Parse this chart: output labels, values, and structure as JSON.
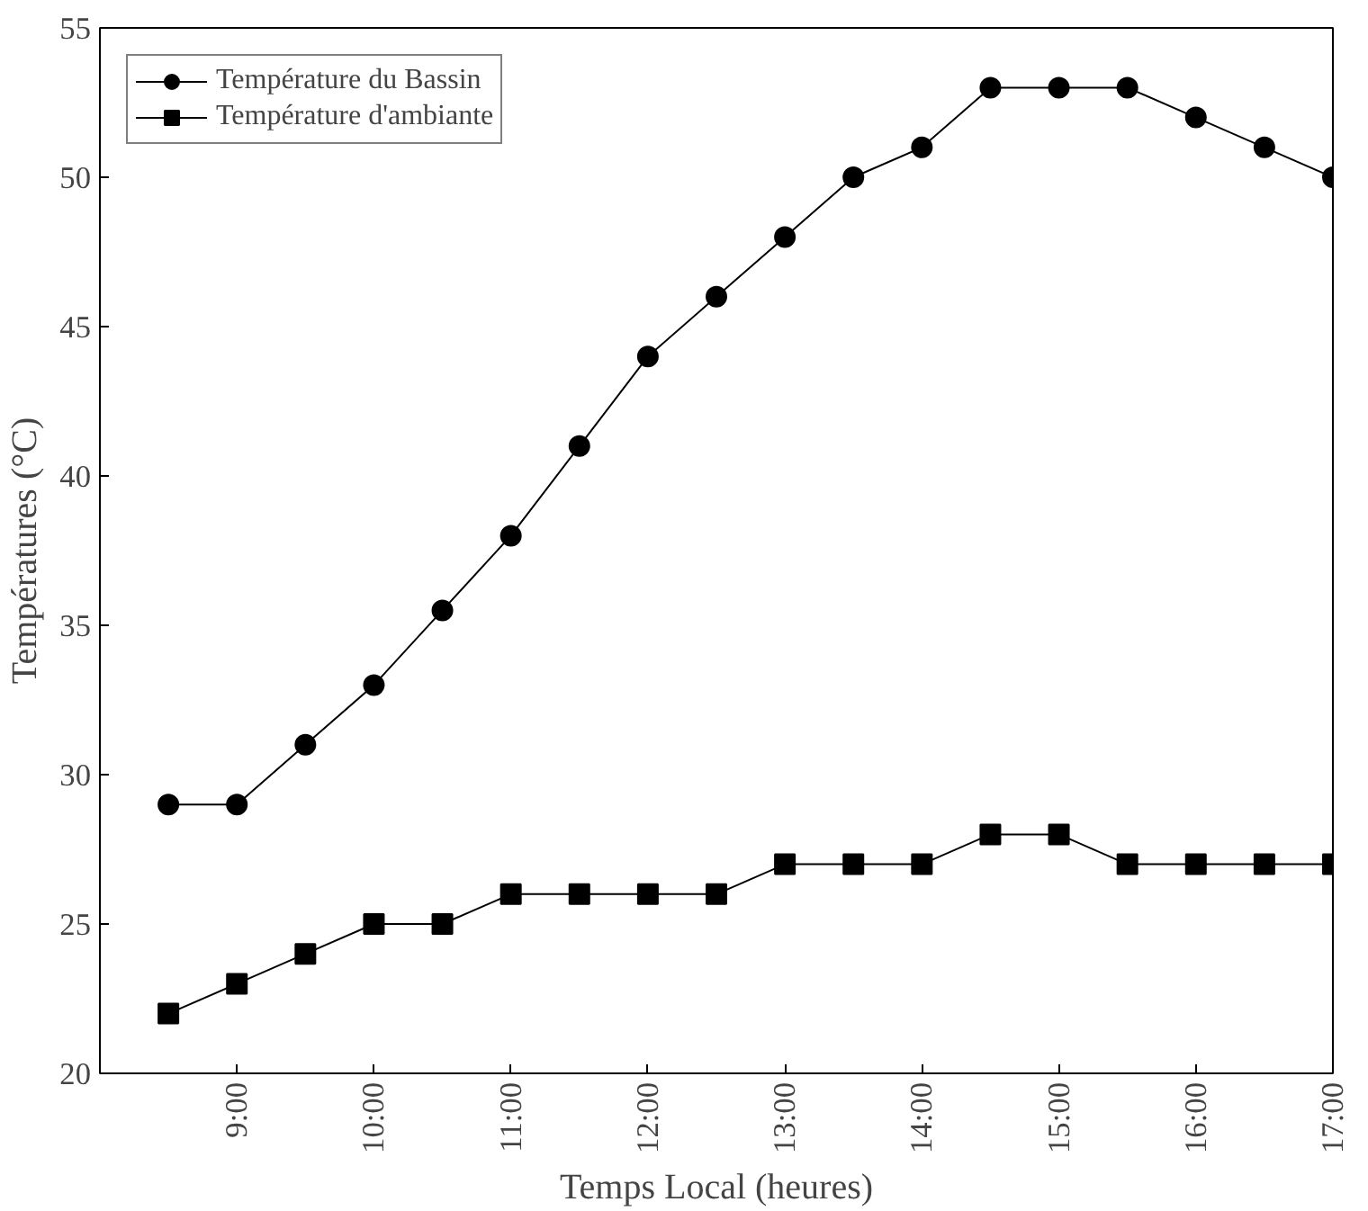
{
  "chart_data": {
    "type": "line",
    "xlabel": "Temps Local (heures)",
    "ylabel": "Températures (°C)",
    "x": [
      8.5,
      9,
      9.5,
      10,
      10.5,
      11,
      11.5,
      12,
      12.5,
      13,
      13.5,
      14,
      14.5,
      15,
      15.5,
      16,
      16.5,
      17
    ],
    "series": [
      {
        "name": "Température du Bassin",
        "color": "#000000",
        "marker": "circle",
        "values": [
          29,
          29,
          31,
          33,
          35.5,
          38,
          41,
          44,
          46,
          48,
          50,
          51,
          53,
          53,
          53,
          52,
          51,
          50
        ]
      },
      {
        "name": "Température d'ambiante",
        "color": "#000000",
        "marker": "square",
        "values": [
          22,
          23,
          24,
          25,
          25,
          26,
          26,
          26,
          26,
          27,
          27,
          27,
          28,
          28,
          27,
          27,
          27,
          27
        ]
      }
    ],
    "xlim": [
      8,
      17
    ],
    "ylim": [
      20,
      55
    ],
    "xticks": [
      {
        "value": 9,
        "label": "9:00"
      },
      {
        "value": 10,
        "label": "10:00"
      },
      {
        "value": 11,
        "label": "11:00"
      },
      {
        "value": 12,
        "label": "12:00"
      },
      {
        "value": 13,
        "label": "13:00"
      },
      {
        "value": 14,
        "label": "14:00"
      },
      {
        "value": 15,
        "label": "15:00"
      },
      {
        "value": 16,
        "label": "16:00"
      },
      {
        "value": 17,
        "label": "17:00"
      }
    ],
    "yticks": [
      20,
      25,
      30,
      35,
      40,
      45,
      50,
      55
    ],
    "grid": false,
    "legend": "top left",
    "line_style": "solid"
  }
}
